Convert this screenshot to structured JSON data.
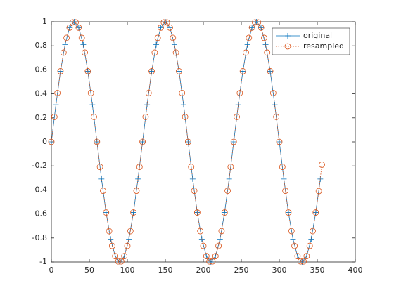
{
  "chart_data": {
    "type": "line",
    "xlim": [
      0,
      400
    ],
    "xticks": [
      0,
      50,
      100,
      150,
      200,
      250,
      300,
      350,
      400
    ],
    "ylim": [
      -1,
      1
    ],
    "yticks": [
      -1,
      -0.8,
      -0.6,
      -0.4,
      -0.2,
      0,
      0.2,
      0.4,
      0.6,
      0.8,
      1
    ],
    "legend": "top-right",
    "series": [
      {
        "name": "original",
        "color": "#0072BD",
        "line_style": "solid",
        "marker": "+",
        "x": [
          0,
          6,
          12,
          18,
          24,
          30,
          36,
          42,
          48,
          54,
          60,
          66,
          72,
          78,
          84,
          90,
          96,
          102,
          108,
          114,
          120,
          126,
          132,
          138,
          144,
          150,
          156,
          162,
          168,
          174,
          180,
          186,
          192,
          198,
          204,
          210,
          216,
          222,
          228,
          234,
          240,
          246,
          252,
          258,
          264,
          270,
          276,
          282,
          288,
          294,
          300,
          306,
          312,
          318,
          324,
          330,
          336,
          342,
          348,
          354
        ],
        "values": [
          0,
          0.309,
          0.588,
          0.809,
          0.951,
          1,
          0.951,
          0.809,
          0.588,
          0.309,
          0,
          -0.309,
          -0.588,
          -0.809,
          -0.951,
          -1,
          -0.951,
          -0.809,
          -0.588,
          -0.309,
          0,
          0.309,
          0.588,
          0.809,
          0.951,
          1,
          0.951,
          0.809,
          0.588,
          0.309,
          0,
          -0.309,
          -0.588,
          -0.809,
          -0.951,
          -1,
          -0.951,
          -0.809,
          -0.588,
          -0.309,
          0,
          0.309,
          0.588,
          0.809,
          0.951,
          1,
          0.951,
          0.809,
          0.588,
          0.309,
          0,
          -0.309,
          -0.588,
          -0.809,
          -0.951,
          -1,
          -0.951,
          -0.809,
          -0.588,
          -0.309
        ]
      },
      {
        "name": "resampled",
        "color": "#D95319",
        "line_style": "dotted",
        "marker": "o",
        "x": [
          0,
          4,
          8,
          12,
          16,
          20,
          24,
          28,
          32,
          36,
          40,
          44,
          48,
          52,
          56,
          60,
          64,
          68,
          72,
          76,
          80,
          84,
          88,
          92,
          96,
          100,
          104,
          108,
          112,
          116,
          120,
          124,
          128,
          132,
          136,
          140,
          144,
          148,
          152,
          156,
          160,
          164,
          168,
          172,
          176,
          180,
          184,
          188,
          192,
          196,
          200,
          204,
          208,
          212,
          216,
          220,
          224,
          228,
          232,
          236,
          240,
          244,
          248,
          252,
          256,
          260,
          264,
          268,
          272,
          276,
          280,
          284,
          288,
          292,
          296,
          300,
          304,
          308,
          312,
          316,
          320,
          324,
          328,
          332,
          336,
          340,
          344,
          348,
          352,
          356
        ],
        "values": [
          0,
          0.208,
          0.407,
          0.588,
          0.743,
          0.866,
          0.951,
          0.995,
          0.995,
          0.951,
          0.866,
          0.743,
          0.588,
          0.407,
          0.208,
          0,
          -0.208,
          -0.407,
          -0.588,
          -0.743,
          -0.866,
          -0.951,
          -0.995,
          -0.995,
          -0.951,
          -0.866,
          -0.743,
          -0.588,
          -0.407,
          -0.208,
          0,
          0.208,
          0.407,
          0.588,
          0.743,
          0.866,
          0.951,
          0.995,
          0.995,
          0.951,
          0.866,
          0.743,
          0.588,
          0.407,
          0.208,
          0,
          -0.208,
          -0.407,
          -0.588,
          -0.743,
          -0.866,
          -0.951,
          -0.995,
          -0.995,
          -0.951,
          -0.866,
          -0.743,
          -0.588,
          -0.407,
          -0.208,
          0,
          0.208,
          0.407,
          0.588,
          0.743,
          0.866,
          0.951,
          0.995,
          0.995,
          0.951,
          0.866,
          0.743,
          0.588,
          0.407,
          0.208,
          0,
          -0.208,
          -0.407,
          -0.588,
          -0.743,
          -0.866,
          -0.951,
          -0.995,
          -0.995,
          -0.951,
          -0.866,
          -0.743,
          -0.588,
          -0.41,
          -0.19
        ]
      }
    ]
  }
}
